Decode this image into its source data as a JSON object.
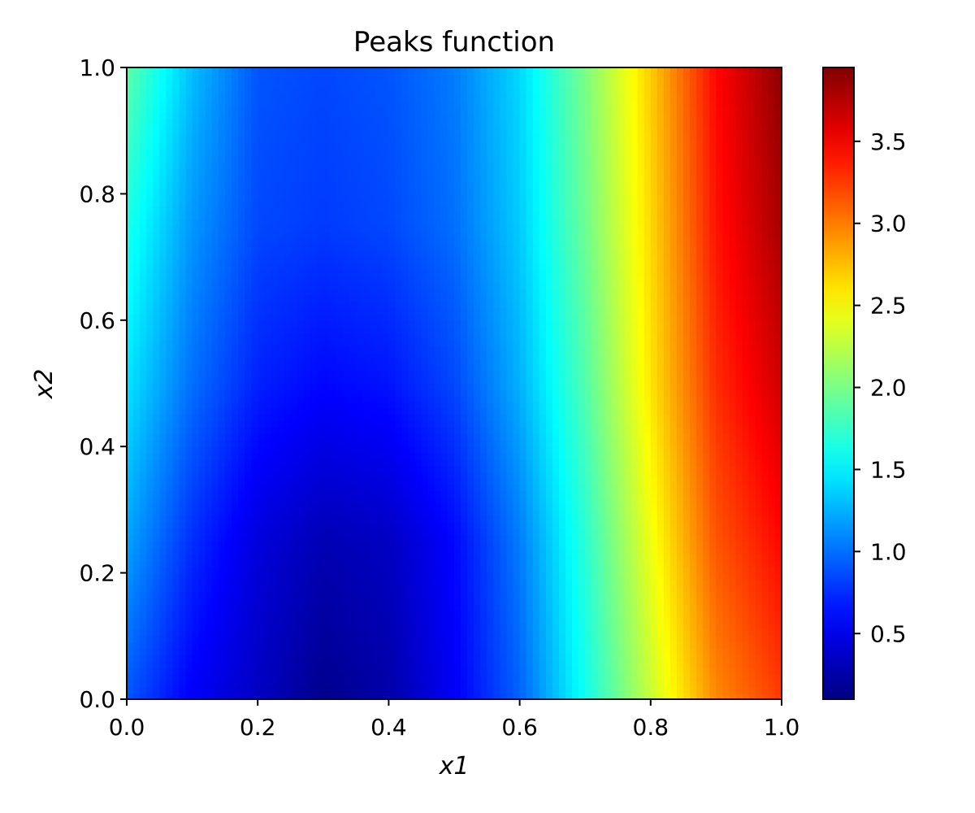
{
  "chart_data": {
    "type": "heatmap",
    "title": "Peaks function",
    "xlabel": "x1",
    "ylabel": "x2",
    "xlim": [
      0,
      1
    ],
    "ylim": [
      0,
      1
    ],
    "colormap": "jet",
    "x_ticks": [
      {
        "value": 0.0,
        "label": "0.0"
      },
      {
        "value": 0.2,
        "label": "0.2"
      },
      {
        "value": 0.4,
        "label": "0.4"
      },
      {
        "value": 0.6,
        "label": "0.6"
      },
      {
        "value": 0.8,
        "label": "0.8"
      },
      {
        "value": 1.0,
        "label": "1.0"
      }
    ],
    "y_ticks": [
      {
        "value": 0.0,
        "label": "0.0"
      },
      {
        "value": 0.2,
        "label": "0.2"
      },
      {
        "value": 0.4,
        "label": "0.4"
      },
      {
        "value": 0.6,
        "label": "0.6"
      },
      {
        "value": 0.8,
        "label": "0.8"
      },
      {
        "value": 1.0,
        "label": "1.0"
      }
    ],
    "colorbar": {
      "range": [
        0.1,
        3.95
      ],
      "ticks": [
        {
          "value": 0.5,
          "label": "0.5"
        },
        {
          "value": 1.0,
          "label": "1.0"
        },
        {
          "value": 1.5,
          "label": "1.5"
        },
        {
          "value": 2.0,
          "label": "2.0"
        },
        {
          "value": 2.5,
          "label": "2.5"
        },
        {
          "value": 3.0,
          "label": "3.0"
        },
        {
          "value": 3.5,
          "label": "3.5"
        }
      ]
    },
    "grid_x": [
      0.0,
      0.1,
      0.2,
      0.3,
      0.4,
      0.5,
      0.6,
      0.7,
      0.8,
      0.9,
      1.0
    ],
    "grid_y": [
      0.0,
      0.25,
      0.5,
      0.75,
      1.0
    ],
    "z": [
      [
        0.9,
        0.55,
        0.35,
        0.15,
        0.25,
        0.55,
        0.95,
        1.6,
        2.3,
        2.95,
        3.25
      ],
      [
        1.2,
        0.75,
        0.45,
        0.3,
        0.35,
        0.6,
        1.05,
        1.7,
        2.45,
        3.15,
        3.45
      ],
      [
        1.45,
        1.0,
        0.7,
        0.6,
        0.65,
        0.85,
        1.25,
        1.85,
        2.6,
        3.3,
        3.65
      ],
      [
        1.65,
        1.15,
        0.85,
        0.8,
        0.85,
        1.0,
        1.35,
        1.95,
        2.65,
        3.4,
        3.8
      ],
      [
        1.9,
        1.3,
        0.9,
        0.85,
        0.9,
        1.05,
        1.4,
        2.0,
        2.7,
        3.45,
        3.9
      ]
    ]
  }
}
